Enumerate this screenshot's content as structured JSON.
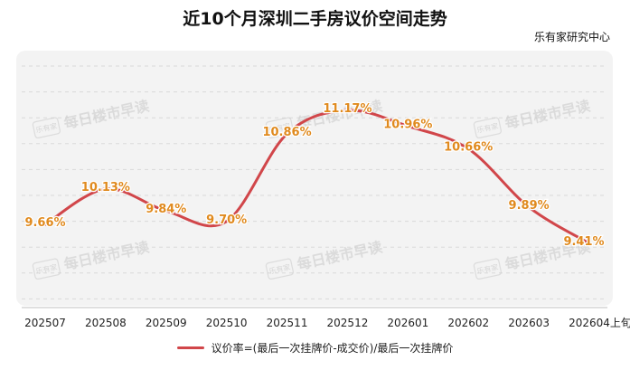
{
  "header": {
    "title": "近10个月深圳二手房议价空间走势",
    "source": "乐有家研究中心"
  },
  "watermark": {
    "logo_text": "乐有家",
    "text": "每日楼市早读"
  },
  "legend": {
    "label": "议价率=(最后一次挂牌价-成交价)/最后一次挂牌价"
  },
  "colors": {
    "line": "#d1464a",
    "label": "#e08a1e",
    "grid": "#d9d9d9",
    "background": "#f3f3f3"
  },
  "chart_data": {
    "type": "line",
    "title": "近10个月深圳二手房议价空间走势",
    "categories": [
      "202507",
      "202508",
      "202509",
      "202510",
      "202511",
      "202512",
      "202601",
      "202602",
      "202603",
      "202604上旬"
    ],
    "series": [
      {
        "name": "议价率=(最后一次挂牌价-成交价)/最后一次挂牌价",
        "values": [
          9.66,
          10.13,
          9.84,
          9.7,
          10.86,
          11.17,
          10.96,
          10.66,
          9.89,
          9.41
        ],
        "labels": [
          "9.66%",
          "10.13%",
          "9.84%",
          "9.70%",
          "10.86%",
          "11.17%",
          "10.96%",
          "10.66%",
          "9.89%",
          "9.41%"
        ]
      }
    ],
    "smooth": true,
    "grid": "horizontal-dashed",
    "legend_position": "bottom"
  }
}
